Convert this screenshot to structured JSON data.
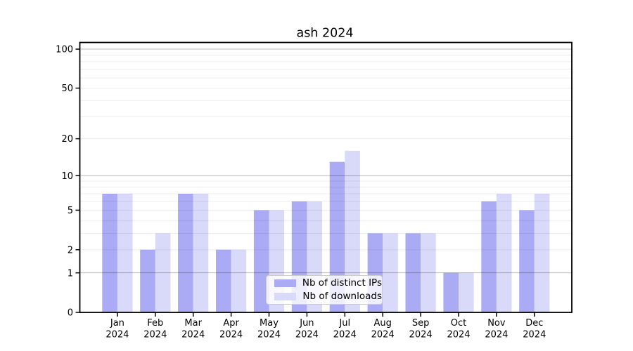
{
  "figure": {
    "background": "#ffffff"
  },
  "chart_data": {
    "type": "bar",
    "title": "ash 2024",
    "categories": [
      "Jan",
      "Feb",
      "Mar",
      "Apr",
      "May",
      "Jun",
      "Jul",
      "Aug",
      "Sep",
      "Oct",
      "Nov",
      "Dec"
    ],
    "year_label": "2024",
    "series": [
      {
        "name": "Nb of distinct IPs",
        "color": "#aaaaf5",
        "values": [
          7,
          2,
          7,
          2,
          5,
          6,
          13,
          3,
          3,
          1,
          6,
          5
        ]
      },
      {
        "name": "Nb of downloads",
        "color": "#d9d9fa",
        "values": [
          7,
          3,
          7,
          2,
          5,
          6,
          16,
          3,
          3,
          1,
          7,
          7
        ]
      }
    ],
    "yscale": "log1p",
    "ylim": [
      0,
      112
    ],
    "y_ticks": [
      0,
      1,
      2,
      5,
      10,
      20,
      50,
      100
    ],
    "grid": {
      "major_lines": [
        1,
        10,
        100
      ],
      "minor_lines": [
        2,
        3,
        4,
        5,
        6,
        7,
        8,
        9,
        20,
        30,
        40,
        50,
        60,
        70,
        80,
        90
      ],
      "major_color": "rgba(0,0,0,0.28)",
      "minor_color": "rgba(0,0,0,0.075)"
    },
    "legend_position": "lower center",
    "spine_color": "#000000",
    "text_color": "#000000"
  }
}
